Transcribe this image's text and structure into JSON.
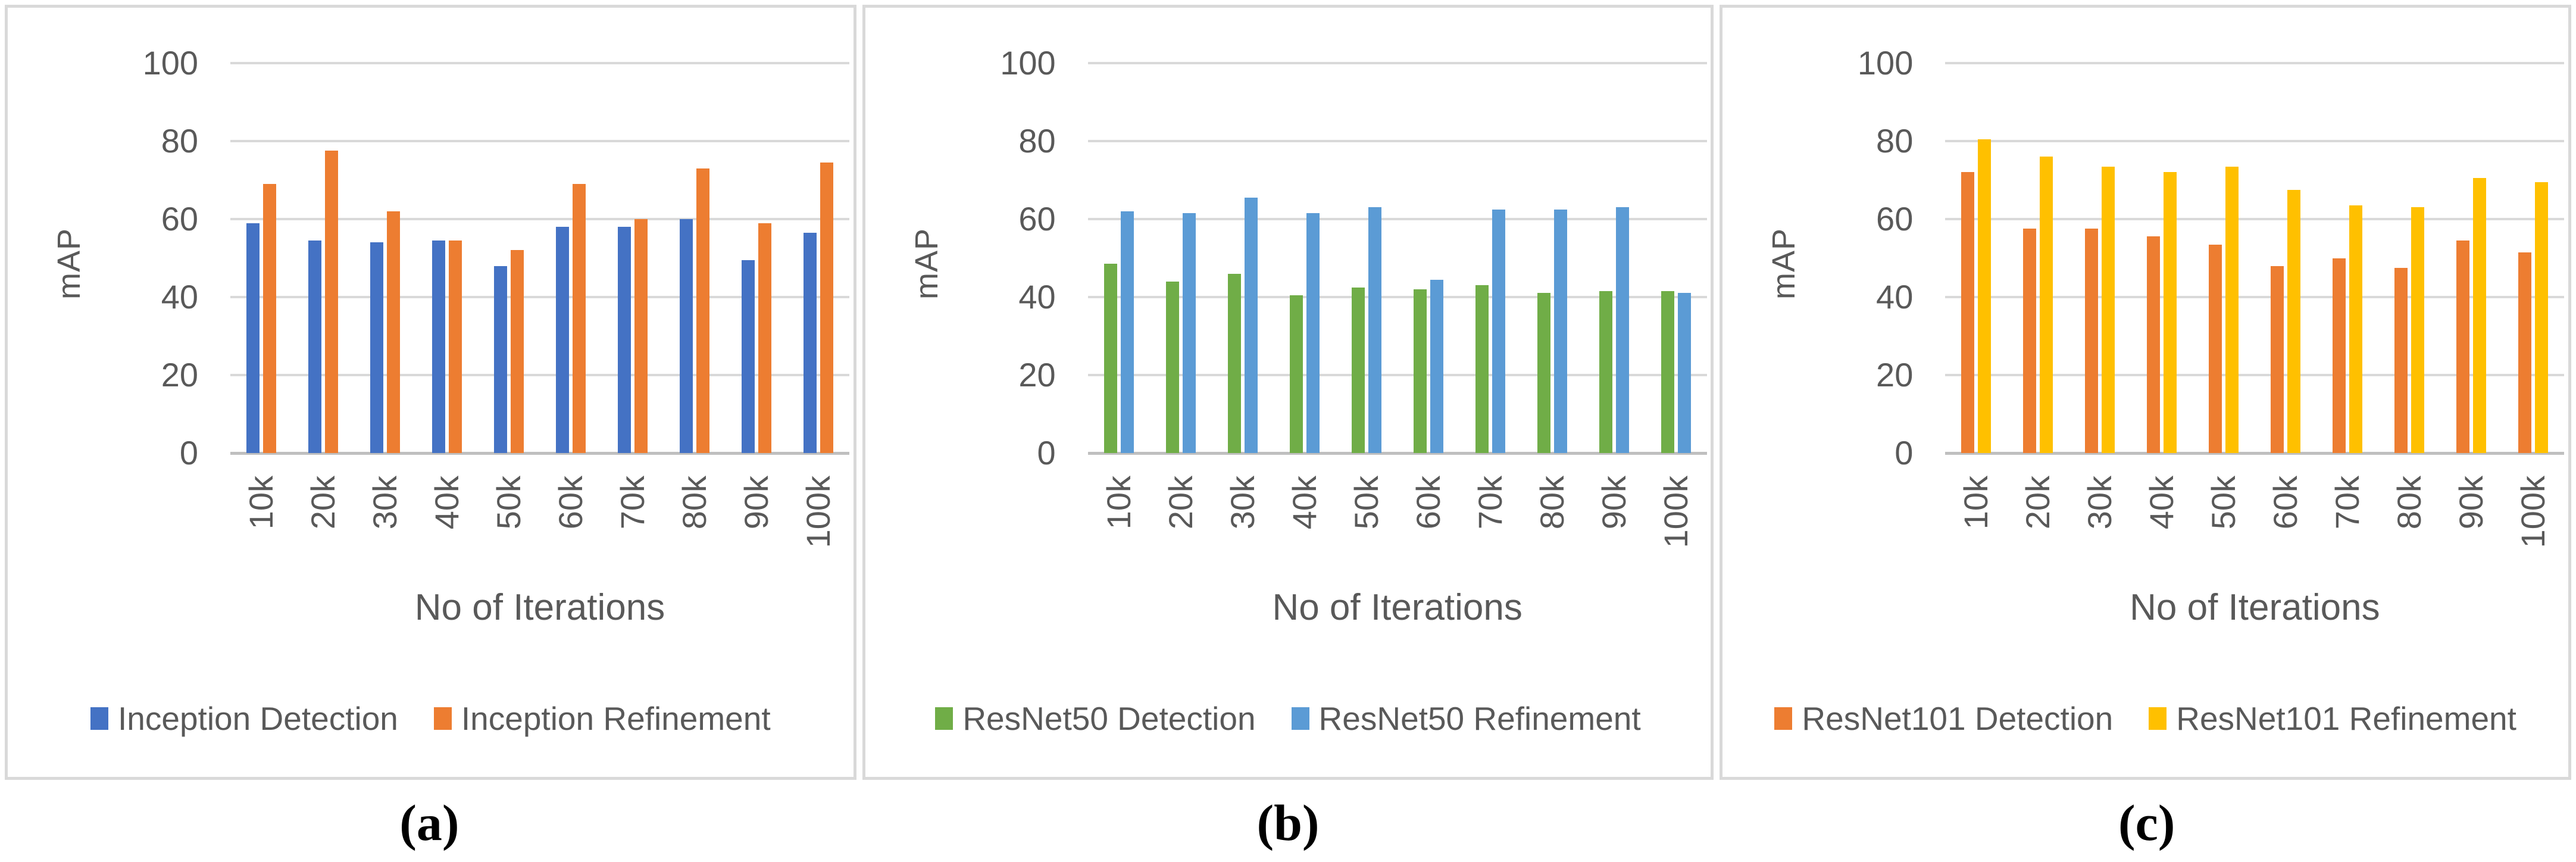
{
  "styles": {
    "background": "#FFFFFF",
    "panel_border_color": "#D9D9D9",
    "grid_color": "#D9D9D9",
    "axis_color": "#BFBFBF",
    "text_color": "#595959",
    "caption_color": "#000000"
  },
  "chart_data": [
    {
      "type": "bar",
      "caption": "(a)",
      "title": "",
      "xlabel": "No of Iterations",
      "ylabel": "mAP",
      "ylim": [
        0,
        100
      ],
      "yticks": [
        100,
        80,
        60,
        40,
        20,
        0
      ],
      "grid": true,
      "legend_position": "bottom",
      "categories": [
        "10k",
        "20k",
        "30k",
        "40k",
        "50k",
        "60k",
        "70k",
        "80k",
        "90k",
        "100k"
      ],
      "series": [
        {
          "name": "Inception Detection",
          "color": "#4472C4",
          "values": [
            59,
            54.5,
            54,
            54.5,
            48,
            58,
            58,
            60,
            49.5,
            56.5
          ]
        },
        {
          "name": "Inception Refinement",
          "color": "#ED7D31",
          "values": [
            69,
            77.5,
            62,
            54.5,
            52,
            69,
            60,
            73,
            59,
            74.5
          ]
        }
      ]
    },
    {
      "type": "bar",
      "caption": "(b)",
      "title": "",
      "xlabel": "No of Iterations",
      "ylabel": "mAP",
      "ylim": [
        0,
        100
      ],
      "yticks": [
        100,
        80,
        60,
        40,
        20,
        0
      ],
      "grid": true,
      "legend_position": "bottom",
      "categories": [
        "10k",
        "20k",
        "30k",
        "40k",
        "50k",
        "60k",
        "70k",
        "80k",
        "90k",
        "100k"
      ],
      "series": [
        {
          "name": "ResNet50 Detection",
          "color": "#70AD47",
          "values": [
            48.5,
            44,
            46,
            40.5,
            42.5,
            42,
            43,
            41,
            41.5,
            41.5
          ]
        },
        {
          "name": "ResNet50 Refinement",
          "color": "#5B9BD5",
          "values": [
            62,
            61.5,
            65.5,
            61.5,
            63,
            44.5,
            62.5,
            62.5,
            63,
            41
          ]
        }
      ]
    },
    {
      "type": "bar",
      "caption": "(c)",
      "title": "",
      "xlabel": "No of Iterations",
      "ylabel": "mAP",
      "ylim": [
        0,
        100
      ],
      "yticks": [
        100,
        80,
        60,
        40,
        20,
        0
      ],
      "grid": true,
      "legend_position": "bottom",
      "categories": [
        "10k",
        "20k",
        "30k",
        "40k",
        "50k",
        "60k",
        "70k",
        "80k",
        "90k",
        "100k"
      ],
      "series": [
        {
          "name": "ResNet101 Detection",
          "color": "#ED7D31",
          "values": [
            72,
            57.5,
            57.5,
            55.5,
            53.5,
            48,
            50,
            47.5,
            54.5,
            51.5
          ]
        },
        {
          "name": "ResNet101 Refinement",
          "color": "#FFC000",
          "values": [
            80.5,
            76,
            73.5,
            72,
            73.5,
            67.5,
            63.5,
            63,
            70.5,
            69.5
          ]
        }
      ]
    }
  ]
}
